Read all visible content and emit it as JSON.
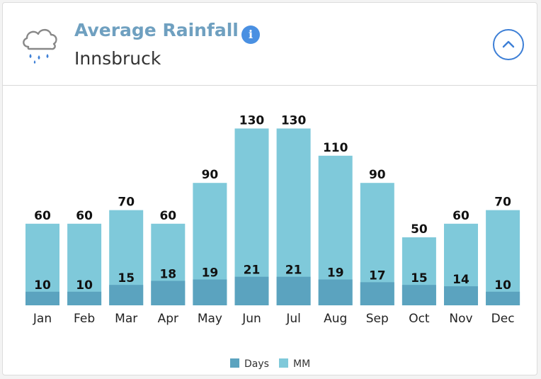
{
  "header": {
    "title": "Average Rainfall",
    "subtitle": "Innsbruck",
    "info_icon": "info-icon",
    "weather_icon": "rain-cloud-icon",
    "collapse_icon": "chevron-up-icon"
  },
  "colors": {
    "days": "#5ba3bf",
    "mm": "#7fc9da",
    "title": "#6fa0c0",
    "accent": "#3d7fd6"
  },
  "chart_data": {
    "type": "bar",
    "categories": [
      "Jan",
      "Feb",
      "Mar",
      "Apr",
      "May",
      "Jun",
      "Jul",
      "Aug",
      "Sep",
      "Oct",
      "Nov",
      "Dec"
    ],
    "series": [
      {
        "name": "Days",
        "values": [
          10,
          10,
          15,
          18,
          19,
          21,
          21,
          19,
          17,
          15,
          14,
          10
        ]
      },
      {
        "name": "MM",
        "values": [
          60,
          60,
          70,
          60,
          90,
          130,
          130,
          110,
          90,
          50,
          60,
          70
        ]
      }
    ],
    "legend_position": "bottom",
    "grid": false
  }
}
